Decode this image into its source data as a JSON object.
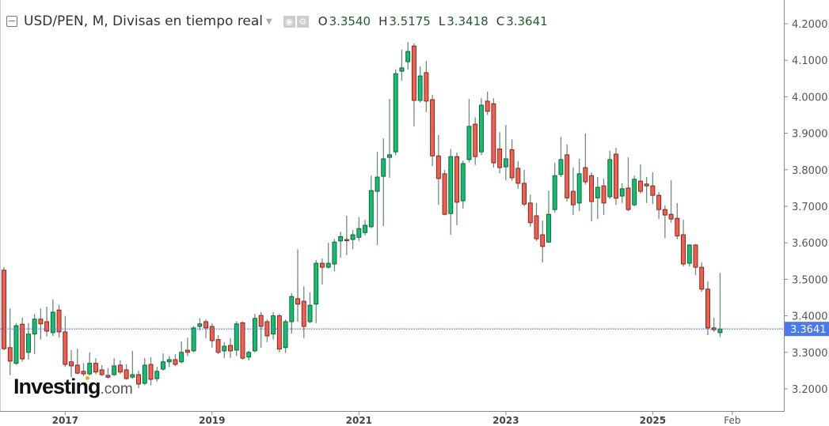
{
  "header": {
    "title": "USD/PEN, M, Divisas en tiempo real",
    "open_label": "O",
    "open": "3.3540",
    "high_label": "H",
    "high": "3.5175",
    "low_label": "L",
    "low": "3.3418",
    "close_label": "C",
    "close": "3.3641",
    "icons": [
      "collapse-icon",
      "dropdown-caret-icon",
      "eye-icon",
      "gear-icon"
    ]
  },
  "logo": {
    "brand": "Investing",
    "suffix": ".com"
  },
  "chart_data": {
    "type": "candlestick",
    "title": "USD/PEN, M, Divisas en tiempo real",
    "ylim": [
      3.15,
      4.25
    ],
    "y_ticks": [
      "4.2000",
      "4.1000",
      "4.0000",
      "3.9000",
      "3.8000",
      "3.7000",
      "3.6000",
      "3.5000",
      "3.4000",
      "3.3000",
      "3.2000"
    ],
    "x_ticks": [
      {
        "label": "2017",
        "date": "2017-01"
      },
      {
        "label": "2019",
        "date": "2019-01"
      },
      {
        "label": "2021",
        "date": "2021-01"
      },
      {
        "label": "2023",
        "date": "2023-01"
      },
      {
        "label": "2025",
        "date": "2025-01"
      },
      {
        "label": "Feb",
        "date": "2026-02"
      }
    ],
    "last_price": "3.3641",
    "grid": false,
    "colors": {
      "up": "#11c06f",
      "down": "#f1604f",
      "up_border": "#0b5a33",
      "down_border": "#7a1d17",
      "wick": "#6b8f7a",
      "price_line": "#4a78f0",
      "price_tag": "#4a78f0"
    },
    "dates": [
      "2016-03",
      "2016-04",
      "2016-05",
      "2016-06",
      "2016-07",
      "2016-08",
      "2016-09",
      "2016-10",
      "2016-11",
      "2016-12",
      "2017-01",
      "2017-02",
      "2017-03",
      "2017-04",
      "2017-05",
      "2017-06",
      "2017-07",
      "2017-08",
      "2017-09",
      "2017-10",
      "2017-11",
      "2017-12",
      "2018-01",
      "2018-02",
      "2018-03",
      "2018-04",
      "2018-05",
      "2018-06",
      "2018-07",
      "2018-08",
      "2018-09",
      "2018-10",
      "2018-11",
      "2018-12",
      "2019-01",
      "2019-02",
      "2019-03",
      "2019-04",
      "2019-05",
      "2019-06",
      "2019-07",
      "2019-08",
      "2019-09",
      "2019-10",
      "2019-11",
      "2019-12",
      "2020-01",
      "2020-02",
      "2020-03",
      "2020-04",
      "2020-05",
      "2020-06",
      "2020-07",
      "2020-08",
      "2020-09",
      "2020-10",
      "2020-11",
      "2020-12",
      "2021-01",
      "2021-02",
      "2021-03",
      "2021-04",
      "2021-05",
      "2021-06",
      "2021-07",
      "2021-08",
      "2021-09",
      "2021-10",
      "2021-11",
      "2021-12",
      "2022-01",
      "2022-02",
      "2022-03",
      "2022-04",
      "2022-05",
      "2022-06",
      "2022-07",
      "2022-08",
      "2022-09",
      "2022-10",
      "2022-11",
      "2022-12",
      "2023-01",
      "2023-02",
      "2023-03",
      "2023-04",
      "2023-05",
      "2023-06",
      "2023-07",
      "2023-08",
      "2023-09",
      "2023-10",
      "2023-11",
      "2023-12",
      "2024-01",
      "2024-02",
      "2024-03",
      "2024-04",
      "2024-05",
      "2024-06",
      "2024-07",
      "2024-08",
      "2024-09",
      "2024-10",
      "2024-11",
      "2024-12",
      "2025-01",
      "2025-02",
      "2025-03",
      "2025-04",
      "2025-05",
      "2025-06",
      "2025-07",
      "2025-08",
      "2025-09",
      "2025-10",
      "2025-11",
      "2025-12"
    ],
    "ohlc": [
      [
        3.525,
        3.533,
        3.305,
        3.31
      ],
      [
        3.313,
        3.42,
        3.237,
        3.276
      ],
      [
        3.27,
        3.38,
        3.265,
        3.373
      ],
      [
        3.377,
        3.395,
        3.275,
        3.282
      ],
      [
        3.3,
        3.38,
        3.28,
        3.35
      ],
      [
        3.35,
        3.405,
        3.295,
        3.391
      ],
      [
        3.391,
        3.42,
        3.335,
        3.378
      ],
      [
        3.384,
        3.425,
        3.343,
        3.358
      ],
      [
        3.354,
        3.445,
        3.345,
        3.41
      ],
      [
        3.416,
        3.43,
        3.34,
        3.356
      ],
      [
        3.356,
        3.4,
        3.26,
        3.267
      ],
      [
        3.274,
        3.306,
        3.232,
        3.263
      ],
      [
        3.265,
        3.31,
        3.24,
        3.243
      ],
      [
        3.248,
        3.27,
        3.235,
        3.241
      ],
      [
        3.241,
        3.3,
        3.237,
        3.27
      ],
      [
        3.27,
        3.284,
        3.24,
        3.246
      ],
      [
        3.252,
        3.265,
        3.235,
        3.239
      ],
      [
        3.237,
        3.257,
        3.228,
        3.232
      ],
      [
        3.239,
        3.284,
        3.235,
        3.263
      ],
      [
        3.265,
        3.278,
        3.24,
        3.246
      ],
      [
        3.252,
        3.267,
        3.225,
        3.228
      ],
      [
        3.232,
        3.304,
        3.228,
        3.239
      ],
      [
        3.239,
        3.25,
        3.202,
        3.213
      ],
      [
        3.215,
        3.284,
        3.21,
        3.265
      ],
      [
        3.267,
        3.287,
        3.21,
        3.226
      ],
      [
        3.228,
        3.26,
        3.22,
        3.248
      ],
      [
        3.254,
        3.297,
        3.25,
        3.274
      ],
      [
        3.274,
        3.29,
        3.26,
        3.28
      ],
      [
        3.28,
        3.295,
        3.262,
        3.267
      ],
      [
        3.274,
        3.33,
        3.27,
        3.3
      ],
      [
        3.306,
        3.34,
        3.29,
        3.3
      ],
      [
        3.304,
        3.372,
        3.3,
        3.367
      ],
      [
        3.371,
        3.393,
        3.36,
        3.378
      ],
      [
        3.384,
        3.39,
        3.339,
        3.367
      ],
      [
        3.371,
        3.38,
        3.313,
        3.332
      ],
      [
        3.335,
        3.347,
        3.295,
        3.3
      ],
      [
        3.304,
        3.328,
        3.284,
        3.317
      ],
      [
        3.319,
        3.339,
        3.285,
        3.304
      ],
      [
        3.306,
        3.385,
        3.29,
        3.378
      ],
      [
        3.381,
        3.385,
        3.28,
        3.284
      ],
      [
        3.287,
        3.305,
        3.278,
        3.3
      ],
      [
        3.304,
        3.405,
        3.3,
        3.393
      ],
      [
        3.401,
        3.41,
        3.313,
        3.371
      ],
      [
        3.384,
        3.39,
        3.328,
        3.345
      ],
      [
        3.35,
        3.41,
        3.335,
        3.4
      ],
      [
        3.4,
        3.405,
        3.3,
        3.309
      ],
      [
        3.313,
        3.39,
        3.298,
        3.384
      ],
      [
        3.384,
        3.462,
        3.351,
        3.453
      ],
      [
        3.447,
        3.582,
        3.384,
        3.432
      ],
      [
        3.44,
        3.481,
        3.339,
        3.371
      ],
      [
        3.384,
        3.464,
        3.38,
        3.429
      ],
      [
        3.432,
        3.553,
        3.38,
        3.544
      ],
      [
        3.544,
        3.557,
        3.486,
        3.533
      ],
      [
        3.533,
        3.6,
        3.53,
        3.544
      ],
      [
        3.542,
        3.61,
        3.522,
        3.602
      ],
      [
        3.605,
        3.63,
        3.559,
        3.617
      ],
      [
        3.609,
        3.674,
        3.566,
        3.607
      ],
      [
        3.609,
        3.635,
        3.583,
        3.622
      ],
      [
        3.615,
        3.67,
        3.605,
        3.639
      ],
      [
        3.628,
        3.663,
        3.62,
        3.648
      ],
      [
        3.644,
        3.784,
        3.64,
        3.743
      ],
      [
        3.741,
        3.849,
        3.594,
        3.78
      ],
      [
        3.782,
        3.886,
        3.646,
        3.83
      ],
      [
        3.834,
        3.994,
        3.778,
        3.841
      ],
      [
        3.849,
        4.075,
        3.84,
        4.063
      ],
      [
        4.07,
        4.129,
        4.044,
        4.079
      ],
      [
        4.096,
        4.15,
        4.075,
        4.124
      ],
      [
        4.139,
        4.146,
        3.919,
        3.99
      ],
      [
        3.99,
        4.083,
        3.984,
        4.057
      ],
      [
        4.066,
        4.098,
        3.958,
        3.988
      ],
      [
        3.992,
        4.005,
        3.81,
        3.838
      ],
      [
        3.838,
        3.895,
        3.704,
        3.776
      ],
      [
        3.789,
        3.8,
        3.675,
        3.678
      ],
      [
        3.68,
        3.857,
        3.622,
        3.836
      ],
      [
        3.836,
        3.847,
        3.648,
        3.711
      ],
      [
        3.715,
        3.825,
        3.694,
        3.817
      ],
      [
        3.828,
        3.994,
        3.82,
        3.919
      ],
      [
        3.925,
        3.944,
        3.813,
        3.836
      ],
      [
        3.849,
        3.996,
        3.84,
        3.977
      ],
      [
        3.988,
        4.014,
        3.95,
        3.96
      ],
      [
        3.981,
        3.996,
        3.806,
        3.819
      ],
      [
        3.857,
        3.903,
        3.79,
        3.806
      ],
      [
        3.808,
        3.923,
        3.771,
        3.83
      ],
      [
        3.855,
        3.883,
        3.77,
        3.778
      ],
      [
        3.804,
        3.823,
        3.748,
        3.763
      ],
      [
        3.763,
        3.8,
        3.7,
        3.706
      ],
      [
        3.709,
        3.732,
        3.644,
        3.655
      ],
      [
        3.674,
        3.709,
        3.605,
        3.611
      ],
      [
        3.622,
        3.661,
        3.546,
        3.59
      ],
      [
        3.602,
        3.743,
        3.6,
        3.678
      ],
      [
        3.691,
        3.819,
        3.683,
        3.784
      ],
      [
        3.787,
        3.89,
        3.78,
        3.828
      ],
      [
        3.841,
        3.869,
        3.713,
        3.723
      ],
      [
        3.741,
        3.806,
        3.676,
        3.704
      ],
      [
        3.709,
        3.83,
        3.687,
        3.789
      ],
      [
        3.806,
        3.899,
        3.76,
        3.767
      ],
      [
        3.784,
        3.793,
        3.659,
        3.713
      ],
      [
        3.723,
        3.78,
        3.665,
        3.752
      ],
      [
        3.756,
        3.776,
        3.676,
        3.709
      ],
      [
        3.726,
        3.852,
        3.72,
        3.828
      ],
      [
        3.843,
        3.86,
        3.704,
        3.722
      ],
      [
        3.728,
        3.763,
        3.709,
        3.748
      ],
      [
        3.75,
        3.834,
        3.687,
        3.691
      ],
      [
        3.704,
        3.784,
        3.7,
        3.774
      ],
      [
        3.769,
        3.815,
        3.735,
        3.741
      ],
      [
        3.761,
        3.78,
        3.709,
        3.756
      ],
      [
        3.756,
        3.793,
        3.706,
        3.73
      ],
      [
        3.73,
        3.739,
        3.665,
        3.691
      ],
      [
        3.691,
        3.702,
        3.613,
        3.676
      ],
      [
        3.678,
        3.771,
        3.655,
        3.665
      ],
      [
        3.667,
        3.709,
        3.61,
        3.619
      ],
      [
        3.622,
        3.663,
        3.535,
        3.542
      ],
      [
        3.544,
        3.596,
        3.535,
        3.594
      ],
      [
        3.594,
        3.596,
        3.511,
        3.533
      ],
      [
        3.533,
        3.546,
        3.466,
        3.473
      ],
      [
        3.473,
        3.494,
        3.347,
        3.367
      ],
      [
        3.367,
        3.395,
        3.356,
        3.362
      ],
      [
        3.354,
        3.5175,
        3.3418,
        3.3641
      ]
    ]
  }
}
